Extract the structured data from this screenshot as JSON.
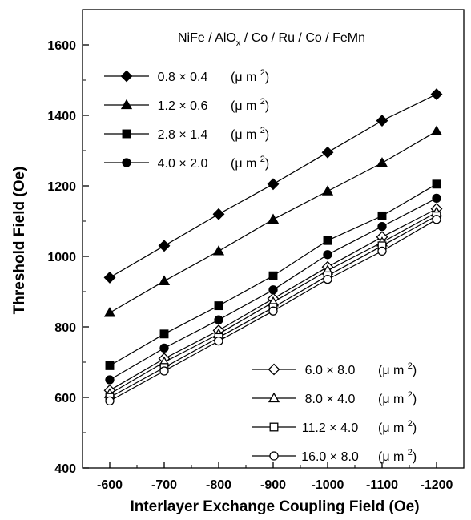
{
  "chart_data": {
    "type": "line",
    "xlabel": "Interlayer Exchange Coupling Field (Oe)",
    "ylabel": "Threshold Field (Oe)",
    "annotation": {
      "prefix": "NiFe / AlO",
      "subscript": "x",
      "suffix": " / Co / Ru / Co / FeMn"
    },
    "x": [
      -600,
      -700,
      -800,
      -900,
      -1000,
      -1100,
      -1200
    ],
    "x_tick_labels": [
      "-600",
      "-700",
      "-800",
      "-900",
      "-1000",
      "-1100",
      "-1200"
    ],
    "xlim": [
      -550,
      -1250
    ],
    "ylim": [
      400,
      1700
    ],
    "y_ticks": [
      400,
      600,
      800,
      1000,
      1200,
      1400,
      1600
    ],
    "y_tick_labels": [
      "400",
      "600",
      "800",
      "1000",
      "1200",
      "1400",
      "1600"
    ],
    "unit": "(μ m",
    "unit_sup": "2",
    "unit_close": ")",
    "series": [
      {
        "name": "0.8 × 0.4",
        "marker": "diamond",
        "filled": true,
        "legend": "top",
        "values": [
          940,
          1030,
          1120,
          1205,
          1295,
          1385,
          1460
        ]
      },
      {
        "name": "1.2 × 0.6",
        "marker": "triangle",
        "filled": true,
        "legend": "top",
        "values": [
          840,
          930,
          1015,
          1105,
          1185,
          1265,
          1355
        ]
      },
      {
        "name": "2.8 × 1.4",
        "marker": "square",
        "filled": true,
        "legend": "top",
        "values": [
          690,
          780,
          860,
          945,
          1045,
          1115,
          1205
        ]
      },
      {
        "name": "4.0 × 2.0",
        "marker": "circle",
        "filled": true,
        "legend": "top",
        "values": [
          650,
          740,
          820,
          905,
          1005,
          1085,
          1165
        ]
      },
      {
        "name": "6.0 × 8.0",
        "marker": "diamond",
        "filled": false,
        "legend": "bottom",
        "values": [
          620,
          710,
          790,
          880,
          970,
          1055,
          1135
        ]
      },
      {
        "name": "8.0 × 4.0",
        "marker": "triangle",
        "filled": false,
        "legend": "bottom",
        "values": [
          610,
          700,
          780,
          870,
          960,
          1040,
          1125
        ]
      },
      {
        "name": "11.2 × 4.0",
        "marker": "square",
        "filled": false,
        "legend": "bottom",
        "values": [
          600,
          685,
          770,
          855,
          945,
          1030,
          1115
        ]
      },
      {
        "name": "16.0 × 8.0",
        "marker": "circle",
        "filled": false,
        "legend": "bottom",
        "values": [
          590,
          675,
          760,
          845,
          935,
          1015,
          1105
        ]
      }
    ],
    "legend_placement": [
      "top-left",
      "bottom-right"
    ],
    "grid": false
  }
}
